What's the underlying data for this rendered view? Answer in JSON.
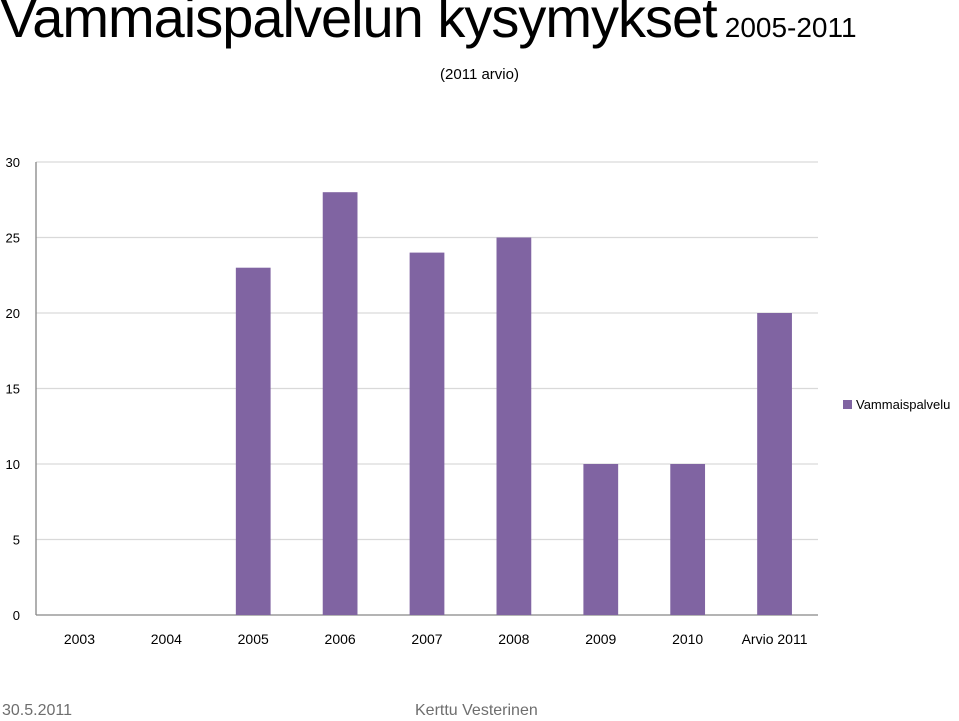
{
  "slide": {
    "title": "Vammaispalvelun kysymykset",
    "title_years": "2005-2011",
    "subtitle": "(2011 arvio)"
  },
  "footer": {
    "date": "30.5.2011",
    "author": "Kerttu Vesterinen"
  },
  "chart_data": {
    "type": "bar",
    "categories": [
      "2003",
      "2004",
      "2005",
      "2006",
      "2007",
      "2008",
      "2009",
      "2010",
      "Arvio 2011"
    ],
    "series": [
      {
        "name": "Vammaispalvelu",
        "values": [
          0,
          0,
          23,
          28,
          24,
          25,
          10,
          10,
          20
        ],
        "color": "#8064a2"
      }
    ],
    "ylim": [
      0,
      30
    ],
    "yticks": [
      0,
      5,
      10,
      15,
      20,
      25,
      30
    ],
    "grid": true,
    "legend": "right",
    "gridColor": "#d9d9d9",
    "axisColor": "#868686"
  }
}
